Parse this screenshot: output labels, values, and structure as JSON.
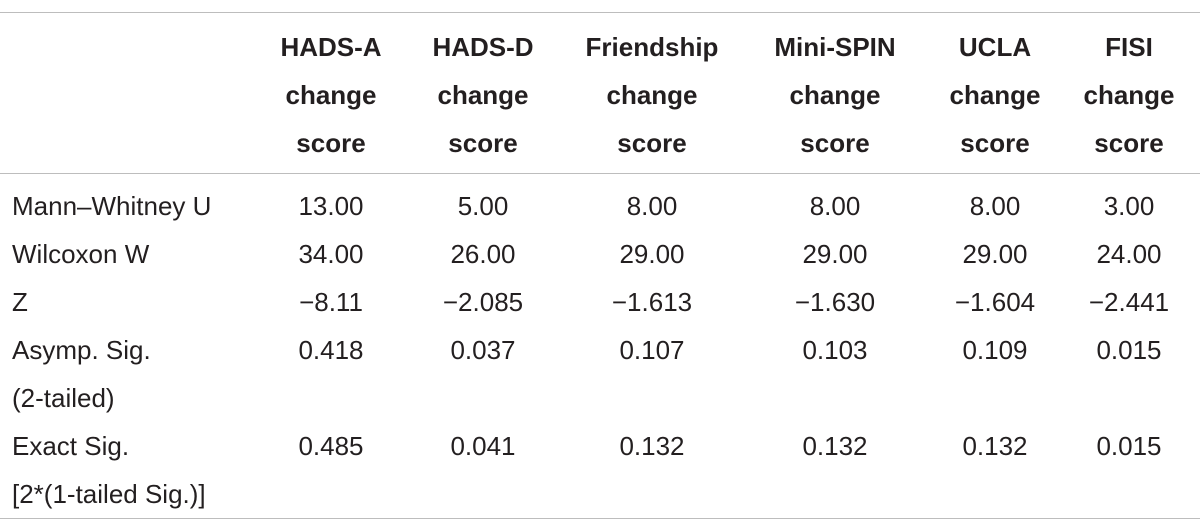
{
  "table": {
    "header": [
      [],
      [
        "HADS-A",
        "change",
        "score"
      ],
      [
        "HADS-D",
        "change",
        "score"
      ],
      [
        "Friendship",
        "change",
        "score"
      ],
      [
        "Mini-SPIN",
        "change",
        "score"
      ],
      [
        "UCLA",
        "change",
        "score"
      ],
      [
        "FISI",
        "change",
        "score"
      ]
    ],
    "rows": [
      {
        "label": [
          "Mann–Whitney U"
        ],
        "cells": [
          "13.00",
          "5.00",
          "8.00",
          "8.00",
          "8.00",
          "3.00"
        ]
      },
      {
        "label": [
          "Wilcoxon W"
        ],
        "cells": [
          "34.00",
          "26.00",
          "29.00",
          "29.00",
          "29.00",
          "24.00"
        ]
      },
      {
        "label": [
          "Z"
        ],
        "cells": [
          "−8.11",
          "−2.085",
          "−1.613",
          "−1.630",
          "−1.604",
          "−2.441"
        ]
      },
      {
        "label": [
          "Asymp. Sig.",
          "(2-tailed)"
        ],
        "cells": [
          "0.418",
          "0.037",
          "0.107",
          "0.103",
          "0.109",
          "0.015"
        ]
      },
      {
        "label": [
          "Exact Sig.",
          "[2*(1-tailed Sig.)]"
        ],
        "cells": [
          "0.485",
          "0.041",
          "0.132",
          "0.132",
          "0.132",
          "0.015"
        ]
      }
    ]
  }
}
